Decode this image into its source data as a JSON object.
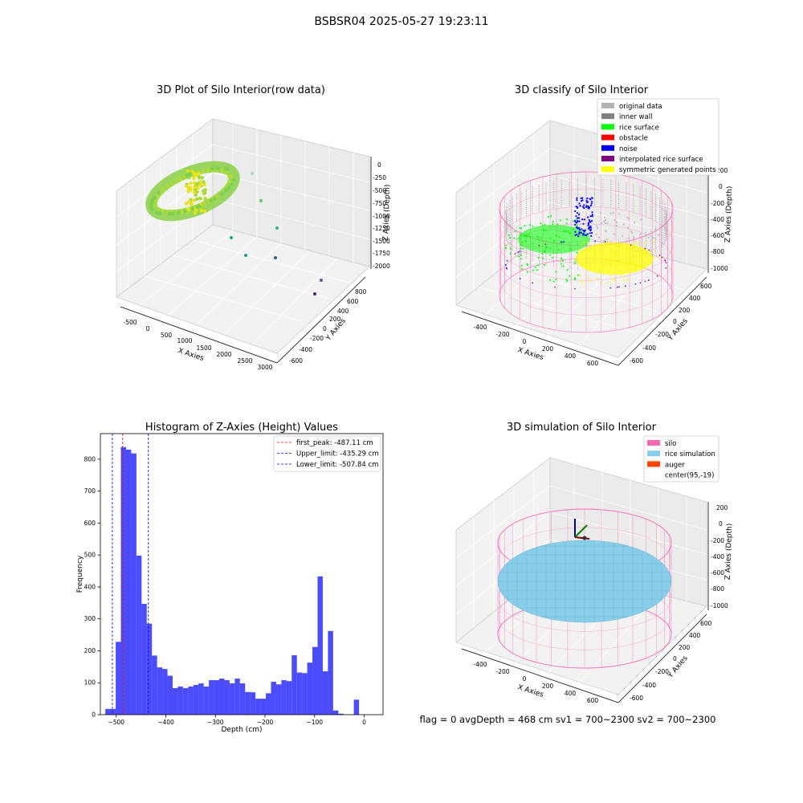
{
  "suptitle": "BSBSR04 2025-05-27 19:23:11",
  "status_line": "flag = 0     avgDepth = 468 cm  sv1 = 700~2300  sv2 = 700~2300",
  "panel_raw": {
    "title": "3D Plot of Silo Interior(row data)",
    "xlabel": "X Axies",
    "ylabel": "Y Axies",
    "zlabel": "Z Axies (Depth)",
    "xticks": [
      "-500",
      "0",
      "500",
      "1000",
      "1500",
      "2000",
      "2500",
      "3000"
    ],
    "yticks": [
      "-600",
      "-400",
      "-200",
      "0",
      "200",
      "400",
      "600",
      "800"
    ],
    "zticks": [
      "0",
      "-250",
      "-500",
      "-750",
      "-1000",
      "-1250",
      "-1500",
      "-1750",
      "-2000"
    ]
  },
  "panel_classify": {
    "title": "3D classify of Silo Interior",
    "xlabel": "X Axies",
    "ylabel": "Y Axies",
    "zlabel": "Z Axies (Depth)",
    "xticks": [
      "-400",
      "-200",
      "0",
      "200",
      "400",
      "600"
    ],
    "yticks": [
      "-600",
      "-400",
      "-200",
      "0",
      "200",
      "400",
      "600"
    ],
    "zticks": [
      "200",
      "0",
      "-200",
      "-400",
      "-600",
      "-800",
      "-1000"
    ],
    "legend": [
      {
        "label": "original data",
        "color": "#b3b3b3"
      },
      {
        "label": "inner wall",
        "color": "#808080"
      },
      {
        "label": "rice surface",
        "color": "#00ff00"
      },
      {
        "label": "obstacle",
        "color": "#ff0000"
      },
      {
        "label": "noise",
        "color": "#0000ff"
      },
      {
        "label": "interpolated rice surface",
        "color": "#800080"
      },
      {
        "label": "symmetric generated points",
        "color": "#ffff00"
      }
    ]
  },
  "panel_sim": {
    "title": "3D simulation of Silo Interior",
    "xlabel": "X Axies",
    "ylabel": "Y Axies",
    "zlabel": "Z Axies (Depth)",
    "xticks": [
      "-400",
      "-200",
      "0",
      "200",
      "400",
      "600"
    ],
    "yticks": [
      "-600",
      "-400",
      "-200",
      "0",
      "200",
      "400",
      "600"
    ],
    "zticks": [
      "200",
      "0",
      "-200",
      "-400",
      "-600",
      "-800",
      "-1000"
    ],
    "legend": [
      {
        "label": "silo",
        "color": "#ff69b4"
      },
      {
        "label": "rice simulation",
        "color": "#87ceeb"
      },
      {
        "label": "auger",
        "color": "#ff4500"
      },
      {
        "label": "center(95,-19)",
        "color": ""
      }
    ]
  },
  "chart_data": {
    "type": "bar",
    "title": "Histogram of Z-Axies (Height) Values",
    "xlabel": "Depth (cm)",
    "ylabel": "Frequency",
    "xlim": [
      -532,
      38
    ],
    "ylim": [
      0,
      880
    ],
    "xticks": [
      -500,
      -400,
      -300,
      -200,
      -100,
      0
    ],
    "yticks": [
      0,
      100,
      200,
      300,
      400,
      500,
      600,
      700,
      800
    ],
    "bin_start": -522,
    "bin_width": 10.44,
    "values": [
      18,
      18,
      228,
      838,
      830,
      818,
      498,
      347,
      285,
      185,
      148,
      143,
      122,
      83,
      88,
      83,
      88,
      93,
      98,
      88,
      108,
      108,
      113,
      108,
      98,
      113,
      98,
      71,
      70,
      50,
      50,
      67,
      103,
      95,
      108,
      105,
      186,
      132,
      130,
      163,
      212,
      433,
      136,
      262,
      13,
      3,
      0,
      0,
      47
    ],
    "bar_color": "#0000ff",
    "vlines": [
      {
        "label": "first_peak: -487.11 cm",
        "x": -487.11,
        "color": "#ff0000"
      },
      {
        "label": "Upper_limit: -435.29 cm",
        "x": -435.29,
        "color": "#0000ff"
      },
      {
        "label": "Lower_limit: -507.84 cm",
        "x": -507.84,
        "color": "#0000ff"
      }
    ],
    "grid": false,
    "legend_position": "top-right"
  }
}
